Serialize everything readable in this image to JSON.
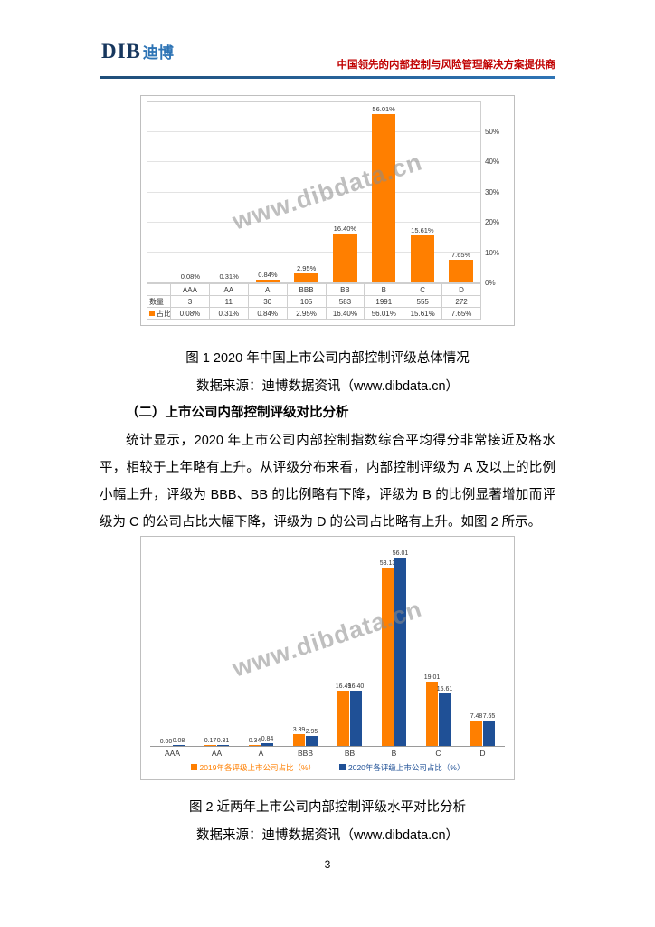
{
  "header": {
    "logo_en": "DIB",
    "logo_cn": "迪博",
    "tagline": "中国领先的内部控制与风险管理解决方案提供商"
  },
  "figure1": {
    "caption": "图 1 2020 年中国上市公司内部控制评级总体情况",
    "source": "数据来源：迪博数据资讯（www.dibdata.cn）",
    "watermark": "www.dibdata.cn"
  },
  "section": {
    "heading": "（二）上市公司内部控制评级对比分析",
    "paragraph": "统计显示，2020 年上市公司内部控制指数综合平均得分非常接近及格水平，相较于上年略有上升。从评级分布来看，内部控制评级为 A 及以上的比例小幅上升，评级为 BBB、BB 的比例略有下降，评级为 B 的比例显著增加而评级为 C 的公司占比大幅下降，评级为 D 的公司占比略有上升。如图 2 所示。"
  },
  "figure2": {
    "caption": "图 2 近两年上市公司内部控制评级水平对比分析",
    "source": "数据来源：迪博数据资讯（www.dibdata.cn）",
    "watermark": "www.dibdata.cn"
  },
  "page_number": "3",
  "chart_data": [
    {
      "type": "bar",
      "title": "2020 年中国上市公司内部控制评级总体情况",
      "categories": [
        "AAA",
        "AA",
        "A",
        "BBB",
        "BB",
        "B",
        "C",
        "D"
      ],
      "series": [
        {
          "name": "数量",
          "values": [
            3,
            11,
            30,
            105,
            583,
            1991,
            555,
            272
          ]
        },
        {
          "name": "占比",
          "values": [
            0.08,
            0.31,
            0.84,
            2.95,
            16.4,
            56.01,
            15.61,
            7.65
          ]
        }
      ],
      "bar_labels": [
        "0.08%",
        "0.31%",
        "0.84%",
        "2.95%",
        "16.40%",
        "56.01%",
        "15.61%",
        "7.65%"
      ],
      "bar_color": "#FF7F00",
      "ymax": 60,
      "yticks": [
        0,
        10,
        20,
        30,
        40,
        50
      ],
      "ytick_labels": [
        "0%",
        "10%",
        "20%",
        "30%",
        "40%",
        "50%"
      ],
      "yaxis_side": "right",
      "grid": true,
      "data_table": true
    },
    {
      "type": "bar",
      "title": "近两年上市公司内部控制评级水平对比分析",
      "categories": [
        "AAA",
        "AA",
        "A",
        "BBB",
        "BB",
        "B",
        "C",
        "D"
      ],
      "series": [
        {
          "name": "2019年各评级上市公司占比（%）",
          "color": "#FF7F00",
          "values": [
            0.0,
            0.17,
            0.34,
            3.39,
            16.49,
            53.13,
            19.01,
            7.48
          ],
          "labels": [
            "0.00",
            "0.17",
            "0.34",
            "3.39",
            "16.49",
            "53.13",
            "19.01",
            "7.48"
          ]
        },
        {
          "name": "2020年各评级上市公司占比（%）",
          "color": "#1F5096",
          "values": [
            0.08,
            0.31,
            0.84,
            2.95,
            16.4,
            56.01,
            15.61,
            7.65
          ],
          "labels": [
            "0.08",
            "0.31",
            "0.84",
            "2.95",
            "16.40",
            "56.01",
            "15.61",
            "7.65"
          ]
        }
      ],
      "ymax": 60,
      "grid": false,
      "legend_position": "bottom"
    }
  ]
}
